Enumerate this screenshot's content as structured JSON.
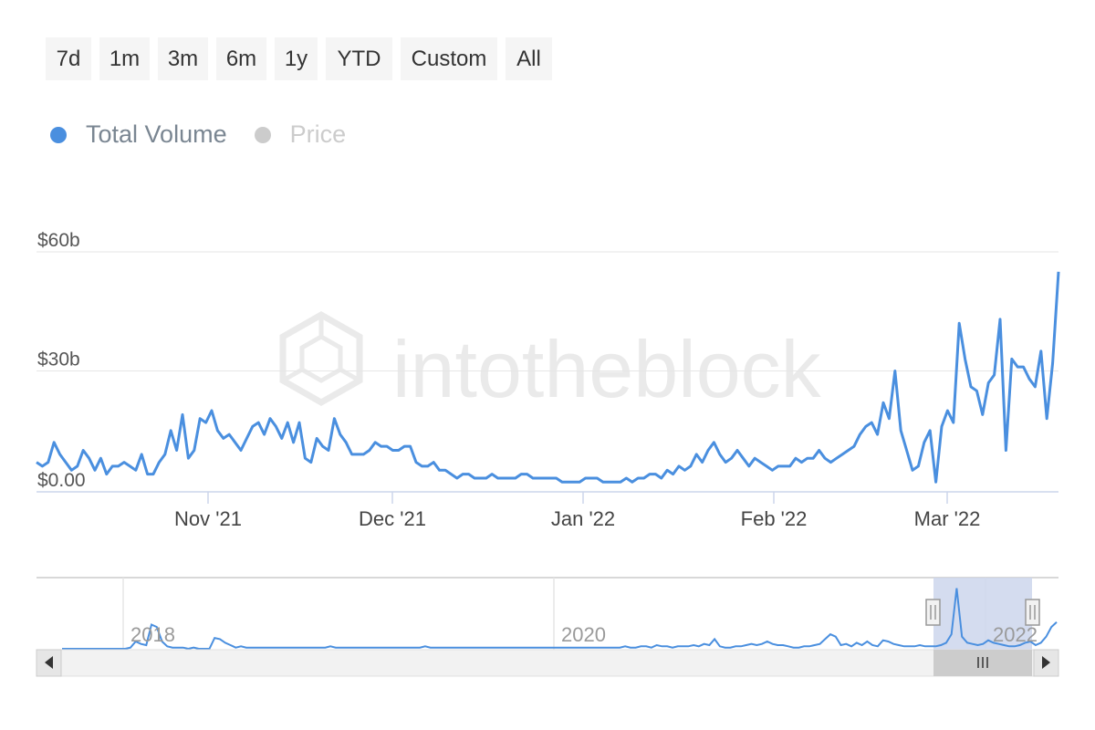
{
  "range_selector": {
    "buttons": [
      "7d",
      "1m",
      "3m",
      "6m",
      "1y",
      "YTD",
      "Custom",
      "All"
    ]
  },
  "legend": {
    "items": [
      {
        "label": "Total Volume",
        "color": "#4a8fdf",
        "active": true
      },
      {
        "label": "Price",
        "color": "#cccccc",
        "active": false
      }
    ]
  },
  "watermark": "intotheblock",
  "colors": {
    "line": "#4a8fdf",
    "grid": "#e6e6e6",
    "navigator_mask": "#cdd6ec",
    "scrollbar": "#e6e6e6"
  },
  "chart_data": {
    "type": "line",
    "title": "",
    "xlabel": "",
    "ylabel": "",
    "series": [
      {
        "name": "Total Volume",
        "unit": "$b",
        "x_start": "2021-10-09",
        "values": [
          7,
          6,
          7,
          12,
          9,
          7,
          5,
          6,
          10,
          8,
          5,
          8,
          4,
          6,
          6,
          7,
          6,
          5,
          9,
          4,
          4,
          7,
          9,
          15,
          10,
          19,
          8,
          10,
          18,
          17,
          20,
          15,
          13,
          14,
          12,
          10,
          13,
          16,
          17,
          14,
          18,
          16,
          13,
          17,
          12,
          17,
          8,
          7,
          13,
          11,
          10,
          18,
          14,
          12,
          9,
          9,
          9,
          10,
          12,
          11,
          11,
          10,
          10,
          11,
          11,
          7,
          6,
          6,
          7,
          5,
          5,
          4,
          3,
          4,
          4,
          3,
          3,
          3,
          4,
          3,
          3,
          3,
          3,
          4,
          4,
          3,
          3,
          3,
          3,
          3,
          2,
          2,
          2,
          2,
          3,
          3,
          3,
          2,
          2,
          2,
          2,
          3,
          2,
          3,
          3,
          4,
          4,
          3,
          5,
          4,
          6,
          5,
          6,
          9,
          7,
          10,
          12,
          9,
          7,
          8,
          10,
          8,
          6,
          8,
          7,
          6,
          5,
          6,
          6,
          6,
          8,
          7,
          8,
          8,
          10,
          8,
          7,
          8,
          9,
          10,
          11,
          14,
          16,
          17,
          14,
          22,
          18,
          30,
          15,
          10,
          5,
          6,
          12,
          15,
          2,
          16,
          20,
          17,
          42,
          33,
          26,
          25,
          19,
          27,
          29,
          43,
          10,
          33,
          31,
          31,
          28,
          26,
          35,
          18,
          32,
          55
        ]
      }
    ],
    "y_ticks": [
      "$0.00",
      "$30b",
      "$60b"
    ],
    "ylim": [
      0,
      60
    ],
    "x_ticks": [
      "Nov '21",
      "Dec '21",
      "Jan '22",
      "Feb '22",
      "Mar '22"
    ],
    "grid": true,
    "legend_position": "top-left"
  },
  "navigator": {
    "labels": [
      "2018",
      "2020",
      "2022"
    ],
    "selected_range": "Oct '21 – Mar '22"
  }
}
